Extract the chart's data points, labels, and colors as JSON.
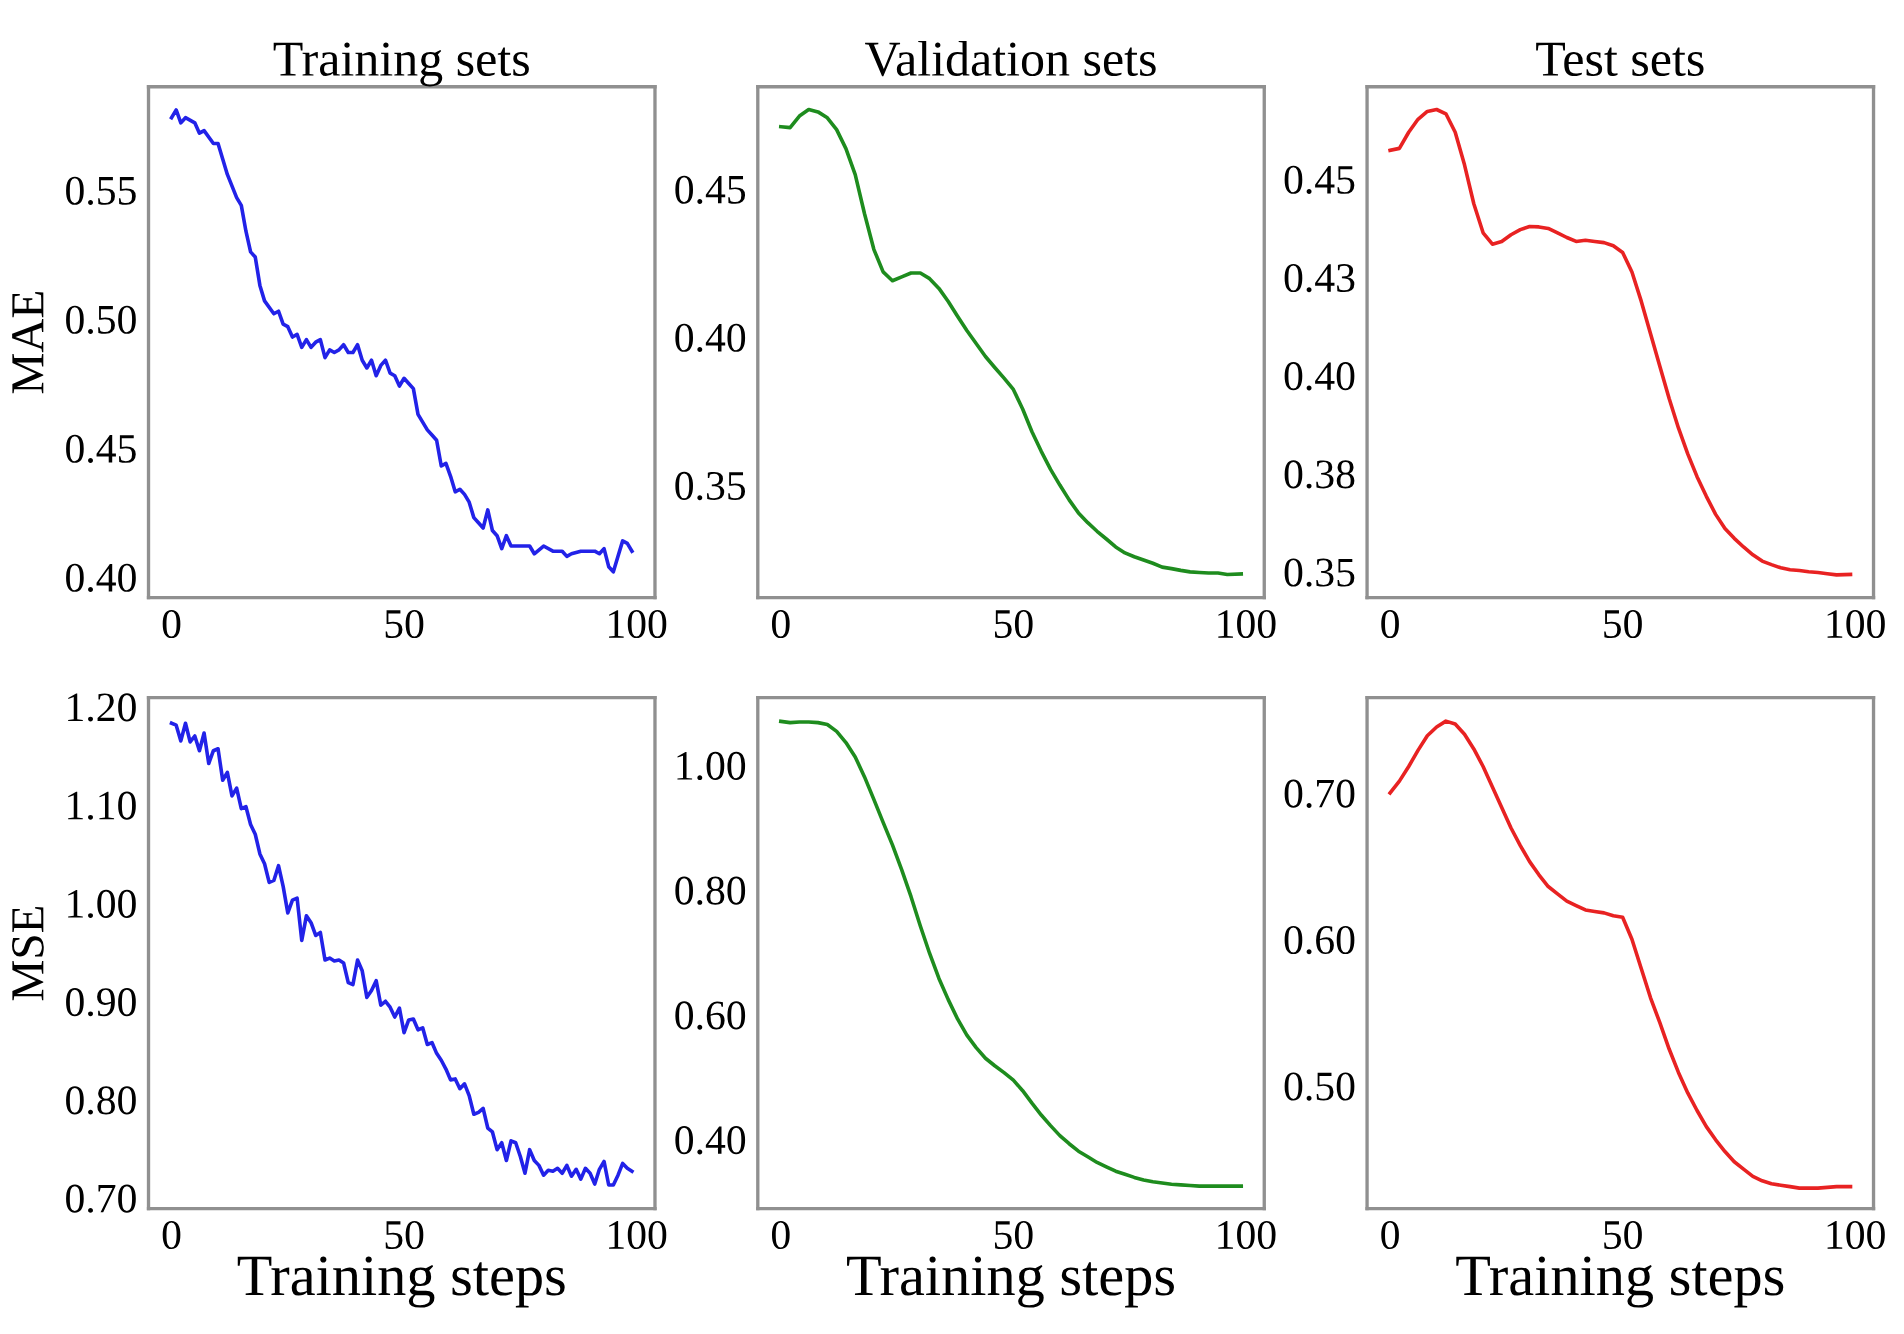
{
  "chart_data": [
    {
      "type": "line",
      "title": "Training sets",
      "ylabel": "MAE",
      "xlim": [
        -4.95,
        103.95
      ],
      "xticks": [
        0,
        50,
        100
      ],
      "ylim": [
        0.392,
        0.59
      ],
      "yticks": [
        {
          "value": 0.4,
          "label": "0.40"
        },
        {
          "value": 0.45,
          "label": "0.45"
        },
        {
          "value": 0.5,
          "label": "0.50"
        },
        {
          "value": 0.55,
          "label": "0.55"
        }
      ],
      "grid": false,
      "series": [
        {
          "color": "#2222e8",
          "x": [
            0,
            1,
            2,
            3,
            5,
            6,
            7,
            9,
            10,
            11,
            12,
            14,
            15,
            16,
            17,
            18,
            19,
            20,
            22,
            23,
            24,
            25,
            26,
            27,
            28,
            29,
            30,
            31,
            32,
            33,
            34,
            35,
            36,
            37,
            38,
            39,
            40,
            41,
            42,
            43,
            44,
            45,
            46,
            47,
            48,
            49,
            50,
            51,
            52,
            53,
            54,
            55,
            56,
            57,
            58,
            59,
            60,
            61,
            62,
            63,
            64,
            65,
            66,
            67,
            68,
            69,
            70,
            71,
            72,
            73,
            75,
            77,
            78,
            80,
            82,
            84,
            85,
            86,
            88,
            90,
            91,
            92,
            93,
            94,
            95,
            96,
            97,
            98,
            99
          ],
          "values": [
            0.578,
            0.581,
            0.576,
            0.578,
            0.576,
            0.572,
            0.573,
            0.568,
            0.568,
            0.562,
            0.556,
            0.547,
            0.544,
            0.534,
            0.526,
            0.524,
            0.513,
            0.507,
            0.502,
            0.503,
            0.498,
            0.497,
            0.493,
            0.494,
            0.489,
            0.492,
            0.489,
            0.491,
            0.492,
            0.485,
            0.488,
            0.487,
            0.488,
            0.49,
            0.487,
            0.487,
            0.49,
            0.484,
            0.481,
            0.484,
            0.478,
            0.482,
            0.484,
            0.479,
            0.478,
            0.474,
            0.477,
            0.475,
            0.473,
            0.463,
            0.46,
            0.457,
            0.455,
            0.453,
            0.443,
            0.444,
            0.439,
            0.433,
            0.434,
            0.432,
            0.429,
            0.423,
            0.421,
            0.419,
            0.426,
            0.418,
            0.416,
            0.411,
            0.416,
            0.412,
            0.412,
            0.412,
            0.409,
            0.412,
            0.41,
            0.41,
            0.408,
            0.409,
            0.41,
            0.41,
            0.41,
            0.409,
            0.411,
            0.404,
            0.402,
            0.408,
            0.414,
            0.413,
            0.41
          ]
        }
      ]
    },
    {
      "type": "line",
      "title": "Validation sets",
      "xlim": [
        -4.95,
        103.95
      ],
      "xticks": [
        0,
        50,
        100
      ],
      "ylim": [
        0.312,
        0.4845
      ],
      "yticks": [
        {
          "value": 0.35,
          "label": "0.35"
        },
        {
          "value": 0.4,
          "label": "0.40"
        },
        {
          "value": 0.45,
          "label": "0.45"
        }
      ],
      "grid": false,
      "series": [
        {
          "color": "#1e8c1e",
          "x": [
            0,
            2,
            4,
            6,
            8,
            10,
            12,
            14,
            16,
            18,
            20,
            22,
            24,
            26,
            28,
            30,
            32,
            34,
            36,
            38,
            40,
            42,
            44,
            46,
            48,
            50,
            52,
            54,
            56,
            58,
            60,
            62,
            64,
            66,
            68,
            70,
            72,
            74,
            76,
            78,
            80,
            82,
            84,
            86,
            88,
            90,
            92,
            94,
            96,
            99
          ],
          "values": [
            0.471,
            0.4707,
            0.4746,
            0.4768,
            0.476,
            0.474,
            0.47,
            0.4636,
            0.4548,
            0.4416,
            0.4296,
            0.422,
            0.419,
            0.4203,
            0.4216,
            0.4216,
            0.4197,
            0.4164,
            0.412,
            0.407,
            0.4022,
            0.3978,
            0.3934,
            0.3897,
            0.3861,
            0.3823,
            0.3757,
            0.368,
            0.3614,
            0.3553,
            0.35,
            0.345,
            0.3406,
            0.3373,
            0.3344,
            0.3318,
            0.3291,
            0.3271,
            0.3258,
            0.3247,
            0.3236,
            0.3223,
            0.3218,
            0.3212,
            0.3207,
            0.3205,
            0.3203,
            0.3203,
            0.3198,
            0.32
          ]
        }
      ]
    },
    {
      "type": "line",
      "title": "Test sets",
      "xlim": [
        -4.95,
        103.95
      ],
      "xticks": [
        0,
        50,
        100
      ],
      "ylim": [
        0.3434,
        0.4735
      ],
      "yticks": [
        {
          "value": 0.35,
          "label": "0.35"
        },
        {
          "value": 0.375,
          "label": "0.38"
        },
        {
          "value": 0.4,
          "label": "0.40"
        },
        {
          "value": 0.425,
          "label": "0.43"
        },
        {
          "value": 0.45,
          "label": "0.45"
        }
      ],
      "grid": false,
      "series": [
        {
          "color": "#e82222",
          "x": [
            0,
            2,
            4,
            6,
            8,
            10,
            12,
            14,
            16,
            18,
            20,
            22,
            24,
            26,
            28,
            30,
            32,
            34,
            36,
            38,
            40,
            42,
            44,
            46,
            48,
            50,
            52,
            54,
            56,
            58,
            60,
            62,
            64,
            66,
            68,
            70,
            72,
            74,
            76,
            78,
            80,
            82,
            84,
            86,
            88,
            90,
            92,
            94,
            96,
            99
          ],
          "values": [
            0.4573,
            0.4578,
            0.4619,
            0.4652,
            0.4672,
            0.4677,
            0.4666,
            0.4619,
            0.4536,
            0.4437,
            0.4363,
            0.4334,
            0.4341,
            0.4358,
            0.4371,
            0.4379,
            0.4378,
            0.4374,
            0.4363,
            0.4351,
            0.4341,
            0.4344,
            0.4341,
            0.4338,
            0.433,
            0.4313,
            0.4263,
            0.4189,
            0.4106,
            0.4023,
            0.3941,
            0.3866,
            0.38,
            0.3742,
            0.3692,
            0.3646,
            0.361,
            0.3585,
            0.3563,
            0.3543,
            0.3527,
            0.3518,
            0.351,
            0.3505,
            0.3503,
            0.35,
            0.3498,
            0.3495,
            0.3492,
            0.3493
          ]
        }
      ]
    },
    {
      "type": "line",
      "ylabel": "MSE",
      "xlabel": "Training steps",
      "xlim": [
        -4.95,
        103.95
      ],
      "xticks": [
        0,
        50,
        100
      ],
      "ylim": [
        0.689,
        1.209
      ],
      "yticks": [
        {
          "value": 0.7,
          "label": "0.70"
        },
        {
          "value": 0.8,
          "label": "0.80"
        },
        {
          "value": 0.9,
          "label": "0.90"
        },
        {
          "value": 1.0,
          "label": "1.00"
        },
        {
          "value": 1.1,
          "label": "1.10"
        },
        {
          "value": 1.2,
          "label": "1.20"
        }
      ],
      "grid": false,
      "series": [
        {
          "color": "#2222e8",
          "x": [
            0,
            1,
            2,
            3,
            4,
            5,
            6,
            7,
            8,
            9,
            10,
            11,
            12,
            13,
            14,
            15,
            16,
            17,
            18,
            19,
            20,
            21,
            22,
            23,
            24,
            25,
            26,
            27,
            28,
            29,
            30,
            31,
            32,
            33,
            34,
            35,
            36,
            37,
            38,
            39,
            40,
            41,
            42,
            43,
            44,
            45,
            46,
            47,
            48,
            49,
            50,
            51,
            52,
            53,
            54,
            55,
            56,
            57,
            58,
            59,
            60,
            61,
            62,
            63,
            64,
            65,
            66,
            67,
            68,
            69,
            70,
            71,
            72,
            73,
            74,
            75,
            76,
            77,
            78,
            79,
            80,
            81,
            82,
            83,
            84,
            85,
            86,
            87,
            88,
            89,
            90,
            91,
            92,
            93,
            94,
            95,
            96,
            97,
            98,
            99
          ],
          "values": [
            1.183,
            1.181,
            1.165,
            1.183,
            1.164,
            1.17,
            1.155,
            1.173,
            1.142,
            1.155,
            1.157,
            1.125,
            1.133,
            1.109,
            1.117,
            1.096,
            1.098,
            1.08,
            1.07,
            1.05,
            1.04,
            1.021,
            1.023,
            1.038,
            1.017,
            0.99,
            1.003,
            1.005,
            0.962,
            0.987,
            0.98,
            0.967,
            0.97,
            0.942,
            0.944,
            0.941,
            0.942,
            0.939,
            0.919,
            0.917,
            0.942,
            0.931,
            0.904,
            0.911,
            0.921,
            0.896,
            0.9,
            0.894,
            0.884,
            0.893,
            0.868,
            0.881,
            0.882,
            0.871,
            0.873,
            0.856,
            0.858,
            0.847,
            0.84,
            0.831,
            0.82,
            0.821,
            0.811,
            0.816,
            0.804,
            0.785,
            0.787,
            0.791,
            0.771,
            0.767,
            0.749,
            0.756,
            0.738,
            0.758,
            0.756,
            0.742,
            0.725,
            0.749,
            0.738,
            0.733,
            0.723,
            0.728,
            0.727,
            0.73,
            0.725,
            0.733,
            0.722,
            0.729,
            0.719,
            0.73,
            0.725,
            0.714,
            0.729,
            0.737,
            0.713,
            0.713,
            0.723,
            0.735,
            0.73,
            0.727
          ]
        }
      ]
    },
    {
      "type": "line",
      "xlabel": "Training steps",
      "xlim": [
        -4.95,
        103.95
      ],
      "xticks": [
        0,
        50,
        100
      ],
      "ylim": [
        0.289,
        1.108
      ],
      "yticks": [
        {
          "value": 0.4,
          "label": "0.40"
        },
        {
          "value": 0.6,
          "label": "0.60"
        },
        {
          "value": 0.8,
          "label": "0.80"
        },
        {
          "value": 1.0,
          "label": "1.00"
        }
      ],
      "grid": false,
      "series": [
        {
          "color": "#1e8c1e",
          "x": [
            0,
            2,
            4,
            6,
            8,
            10,
            12,
            14,
            16,
            18,
            20,
            22,
            24,
            26,
            28,
            30,
            32,
            34,
            36,
            38,
            40,
            42,
            44,
            46,
            48,
            50,
            52,
            54,
            56,
            58,
            60,
            62,
            64,
            66,
            68,
            70,
            72,
            74,
            76,
            78,
            80,
            82,
            84,
            86,
            88,
            90,
            94,
            99
          ],
          "values": [
            1.07,
            1.068,
            1.069,
            1.069,
            1.068,
            1.065,
            1.054,
            1.036,
            1.013,
            0.981,
            0.945,
            0.908,
            0.872,
            0.832,
            0.789,
            0.742,
            0.698,
            0.658,
            0.624,
            0.593,
            0.567,
            0.547,
            0.53,
            0.518,
            0.507,
            0.495,
            0.478,
            0.458,
            0.439,
            0.422,
            0.406,
            0.393,
            0.381,
            0.372,
            0.363,
            0.356,
            0.349,
            0.344,
            0.339,
            0.335,
            0.332,
            0.33,
            0.328,
            0.327,
            0.326,
            0.325,
            0.325,
            0.325
          ]
        }
      ]
    },
    {
      "type": "line",
      "xlabel": "Training steps",
      "xlim": [
        -4.95,
        103.95
      ],
      "xticks": [
        0,
        50,
        100
      ],
      "ylim": [
        0.416,
        0.765
      ],
      "yticks": [
        {
          "value": 0.5,
          "label": "0.50"
        },
        {
          "value": 0.6,
          "label": "0.60"
        },
        {
          "value": 0.7,
          "label": "0.70"
        }
      ],
      "grid": false,
      "series": [
        {
          "color": "#e82222",
          "x": [
            0,
            2,
            4,
            6,
            8,
            10,
            12,
            14,
            16,
            18,
            20,
            22,
            24,
            26,
            28,
            30,
            32,
            34,
            36,
            38,
            40,
            42,
            44,
            46,
            48,
            50,
            52,
            54,
            56,
            58,
            60,
            62,
            64,
            66,
            68,
            70,
            72,
            74,
            76,
            78,
            80,
            82,
            84,
            86,
            88,
            92,
            96,
            99
          ],
          "values": [
            0.7,
            0.708,
            0.718,
            0.729,
            0.739,
            0.745,
            0.749,
            0.747,
            0.74,
            0.73,
            0.718,
            0.704,
            0.69,
            0.676,
            0.664,
            0.653,
            0.644,
            0.636,
            0.631,
            0.626,
            0.623,
            0.62,
            0.619,
            0.618,
            0.616,
            0.615,
            0.6,
            0.58,
            0.56,
            0.543,
            0.525,
            0.509,
            0.495,
            0.483,
            0.472,
            0.463,
            0.455,
            0.448,
            0.443,
            0.438,
            0.435,
            0.433,
            0.432,
            0.431,
            0.43,
            0.43,
            0.431,
            0.431
          ]
        }
      ]
    }
  ]
}
